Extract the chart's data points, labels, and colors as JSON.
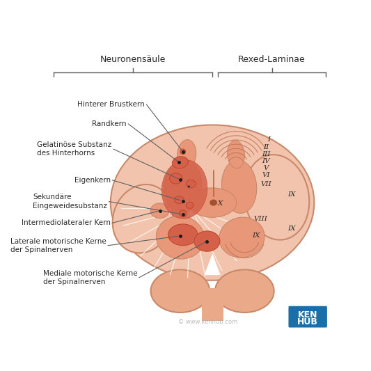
{
  "bg_color": "#ffffff",
  "title_left": "Neuronensäule",
  "title_right": "Rexed-Laminae",
  "cord_fill": "#f2c4ad",
  "cord_fill2": "#eaaa8a",
  "cord_stroke": "#c8896a",
  "gray_fill": "#e89878",
  "nuc_fill": "#d4604a",
  "nuc_stroke": "#bf4a30",
  "lam_stroke": "#c07858",
  "canal_fill": "#a05030",
  "kenhub_blue": "#1a6fa8",
  "line_color": "#606060",
  "text_color": "#2a2a2a",
  "watermark": "© www.kenhub.com"
}
